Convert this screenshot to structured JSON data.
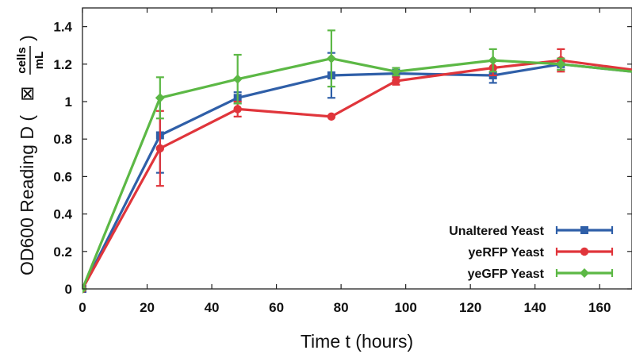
{
  "chart_data": {
    "type": "line",
    "title": "",
    "xlabel": "Time  t (hours)",
    "ylabel_main": "OD600 Reading   D (",
    "ylabel_glyph": "⊠",
    "ylabel_frac_num": "cells",
    "ylabel_frac_den": "mL",
    "ylabel_close": ")",
    "xlim": [
      0,
      170
    ],
    "ylim": [
      0,
      1.5
    ],
    "x_ticks": [
      0,
      20,
      40,
      60,
      80,
      100,
      120,
      140,
      160
    ],
    "x_tick_labels": [
      "0",
      "20",
      "40",
      "60",
      "80",
      "100",
      "120",
      "140",
      "160"
    ],
    "y_ticks": [
      0,
      0.2,
      0.4,
      0.6,
      0.8,
      1.0,
      1.2,
      1.4
    ],
    "y_tick_labels": [
      "0",
      "0.2",
      "0.4",
      "0.6",
      "0.8",
      "1",
      "1.2",
      "1.4"
    ],
    "grid": false,
    "legend_position": "bottom-right",
    "series": [
      {
        "name": "Unaltered Yeast",
        "color": "#2f5fa8",
        "marker": "square",
        "x": [
          0,
          24,
          48,
          77,
          97,
          127,
          148,
          170
        ],
        "y": [
          0,
          0.82,
          1.02,
          1.14,
          1.15,
          1.14,
          1.2,
          1.16
        ],
        "err": [
          0,
          0.2,
          0.03,
          0.12,
          0.02,
          0.04,
          0.03,
          0
        ]
      },
      {
        "name": "yeRFP Yeast",
        "color": "#e0353b",
        "marker": "circle",
        "x": [
          0,
          24,
          48,
          77,
          97,
          127,
          148,
          170
        ],
        "y": [
          0,
          0.75,
          0.96,
          0.92,
          1.11,
          1.18,
          1.22,
          1.17
        ],
        "err": [
          0,
          0.2,
          0.04,
          0,
          0.02,
          0.04,
          0.06,
          0
        ]
      },
      {
        "name": "yeGFP Yeast",
        "color": "#5cb845",
        "marker": "diamond",
        "x": [
          0,
          24,
          48,
          77,
          97,
          127,
          148,
          170
        ],
        "y": [
          0,
          1.02,
          1.12,
          1.23,
          1.16,
          1.22,
          1.2,
          1.16
        ],
        "err": [
          0,
          0.11,
          0.13,
          0.15,
          0.02,
          0.06,
          0.03,
          0
        ]
      }
    ]
  }
}
